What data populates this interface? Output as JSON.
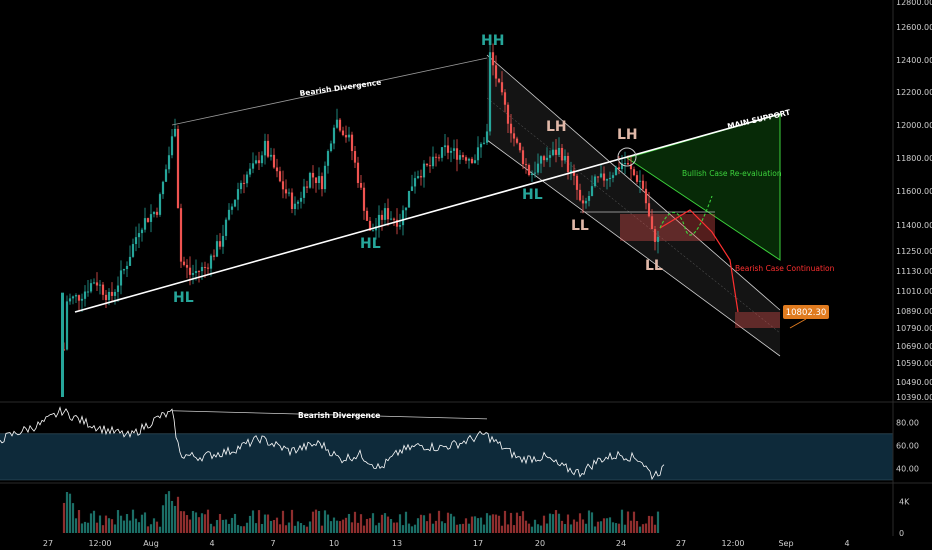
{
  "chart_data": {
    "type": "candlestick",
    "price_axis": {
      "ylim": [
        10390,
        12850
      ],
      "ticks": [
        10390,
        10490,
        10590,
        10690,
        10790,
        10890,
        11010,
        11130,
        11250,
        11400,
        11600,
        11800,
        12000,
        12200,
        12400,
        12600,
        12800
      ],
      "labels": [
        "10390.00",
        "10490.00",
        "10590.00",
        "10690.00",
        "10790.00",
        "10890.00",
        "11010.00",
        "11130.00",
        "11250.00",
        "11400.00",
        "11600.00",
        "11800.00",
        "12000.00",
        "12200.00",
        "12400.00",
        "12600.00",
        "12800.00"
      ],
      "current_price_label": "10802.30",
      "current_price": 10802.3
    },
    "rsi_axis": {
      "ylim": [
        30,
        95
      ],
      "ticks": [
        40,
        60,
        80
      ],
      "labels": [
        "40.00",
        "60.00",
        "80.00"
      ],
      "band": [
        30,
        70
      ]
    },
    "volume_axis": {
      "ylim": [
        0,
        6000
      ],
      "ticks": [
        0,
        4000
      ],
      "labels": [
        "0",
        "4K"
      ]
    },
    "x_axis": {
      "labels": [
        "27",
        "12:00",
        "Aug",
        "4",
        "7",
        "10",
        "13",
        "17",
        "20",
        "24",
        "27",
        "12:00",
        "Sep",
        "4"
      ]
    },
    "swing_labels": [
      {
        "text": "HH",
        "color": "#26a69a",
        "price": 12460
      },
      {
        "text": "LH",
        "color": "#e0b8a8",
        "price": 11900
      },
      {
        "text": "LH",
        "color": "#e0b8a8",
        "price": 11860
      },
      {
        "text": "HL",
        "color": "#26a69a",
        "price": 11000
      },
      {
        "text": "HL",
        "color": "#26a69a",
        "price": 11230
      },
      {
        "text": "HL",
        "color": "#26a69a",
        "price": 11540
      },
      {
        "text": "LL",
        "color": "#e0b8a8",
        "price": 11290
      },
      {
        "text": "LL",
        "color": "#e0b8a8",
        "price": 11140
      }
    ],
    "annotations": {
      "bearish_divergence_price": "Bearish Divergence",
      "bearish_divergence_rsi": "Bearish Divergence",
      "main_support": "MAIN SUPPORT",
      "bullish_case": "Bullish Case Re-evaluation",
      "bearish_case": "Bearish Case Continuation"
    },
    "colors": {
      "up": "#26a69a",
      "down": "#ef5350",
      "rsi_line": "#ffffff",
      "rsi_band": "#0e2a3a",
      "label_box": "#e07b1f",
      "bullish_zone": "#0b3d0b",
      "bearish_arrow": "#ff3030",
      "bullish_arrow": "#3cd23c"
    }
  }
}
